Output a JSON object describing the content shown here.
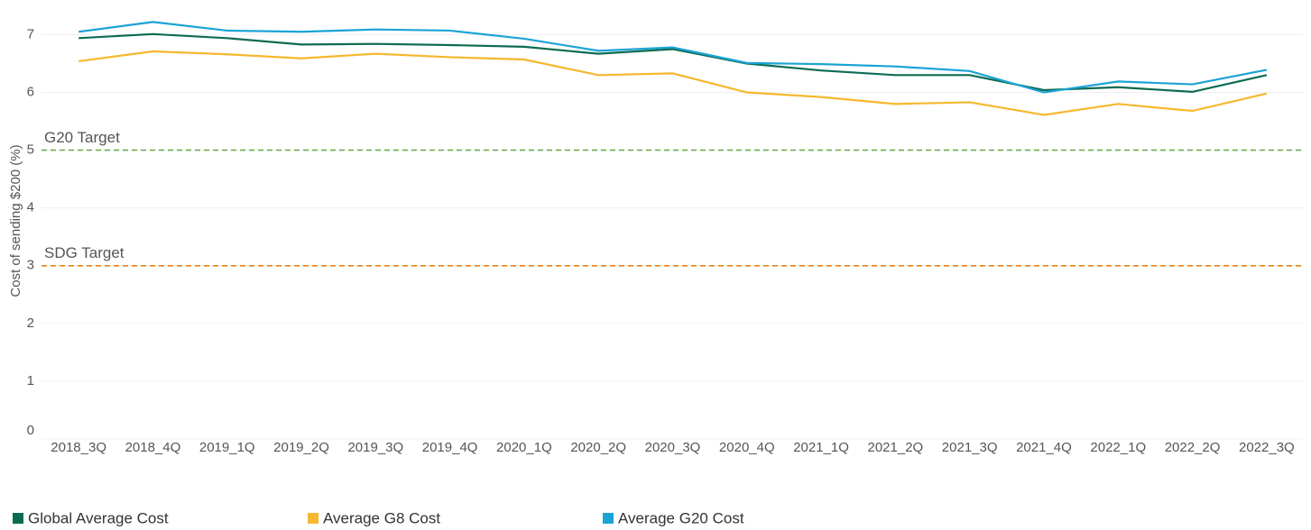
{
  "chart_data": {
    "type": "line",
    "y_label": "Cost of sending $200 (%)",
    "categories": [
      "2018_3Q",
      "2018_4Q",
      "2019_1Q",
      "2019_2Q",
      "2019_3Q",
      "2019_4Q",
      "2020_1Q",
      "2020_2Q",
      "2020_3Q",
      "2020_4Q",
      "2021_1Q",
      "2021_2Q",
      "2021_3Q",
      "2021_4Q",
      "2022_1Q",
      "2022_2Q",
      "2022_3Q"
    ],
    "series": [
      {
        "name": "Global Average Cost",
        "color": "#0d6b53",
        "values": [
          6.94,
          7.01,
          6.94,
          6.83,
          6.84,
          6.82,
          6.79,
          6.67,
          6.75,
          6.5,
          6.38,
          6.3,
          6.3,
          6.04,
          6.09,
          6.01,
          6.3
        ]
      },
      {
        "name": "Average G8 Cost",
        "color": "#f5b82e",
        "values": [
          6.54,
          6.71,
          6.66,
          6.59,
          6.67,
          6.61,
          6.57,
          6.3,
          6.33,
          6.0,
          5.92,
          5.8,
          5.83,
          5.61,
          5.8,
          5.68,
          5.98
        ]
      },
      {
        "name": "Average G20 Cost",
        "color": "#1ba3d6",
        "values": [
          7.05,
          7.22,
          7.07,
          7.05,
          7.09,
          7.07,
          6.93,
          6.72,
          6.78,
          6.51,
          6.49,
          6.45,
          6.37,
          6.0,
          6.19,
          6.14,
          6.39
        ]
      }
    ],
    "reference_lines": [
      {
        "value": 5,
        "label": "G20 Target",
        "color": "#6ab04c"
      },
      {
        "value": 3,
        "label": "SDG Target",
        "color": "#e8821e"
      }
    ],
    "ylim": [
      0,
      7.6
    ],
    "yticks": [
      0,
      1,
      2,
      3,
      4,
      5,
      6,
      7
    ],
    "grid": true
  }
}
